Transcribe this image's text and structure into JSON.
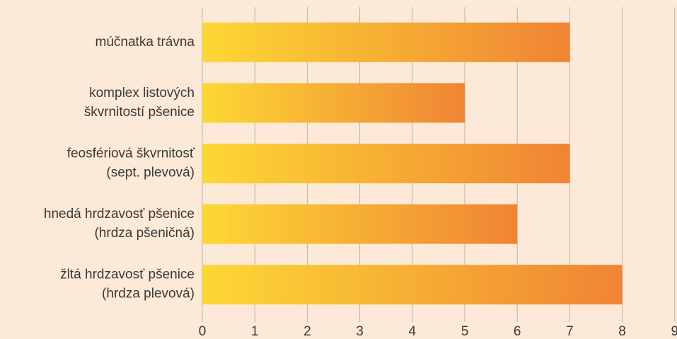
{
  "chart_data": {
    "type": "barh",
    "categories": [
      [
        "múčnatka trávna"
      ],
      [
        "komplex listových",
        "škvrnitostí pšenice"
      ],
      [
        "feosfériová škvrnitosť",
        "(sept. plevová)"
      ],
      [
        "hnedá hrdzavosť pšenice",
        "(hrdza pšeničná)"
      ],
      [
        "žltá hrdzavosť pšenice",
        "(hrdza plevová)"
      ]
    ],
    "values": [
      7,
      5,
      7,
      6,
      8
    ],
    "color": [
      "#fdd835",
      "#ef8434"
    ],
    "xlim": [
      0,
      9
    ],
    "xticks": [
      0,
      1,
      2,
      3,
      4,
      5,
      6,
      7,
      8,
      9
    ],
    "grid": true
  }
}
